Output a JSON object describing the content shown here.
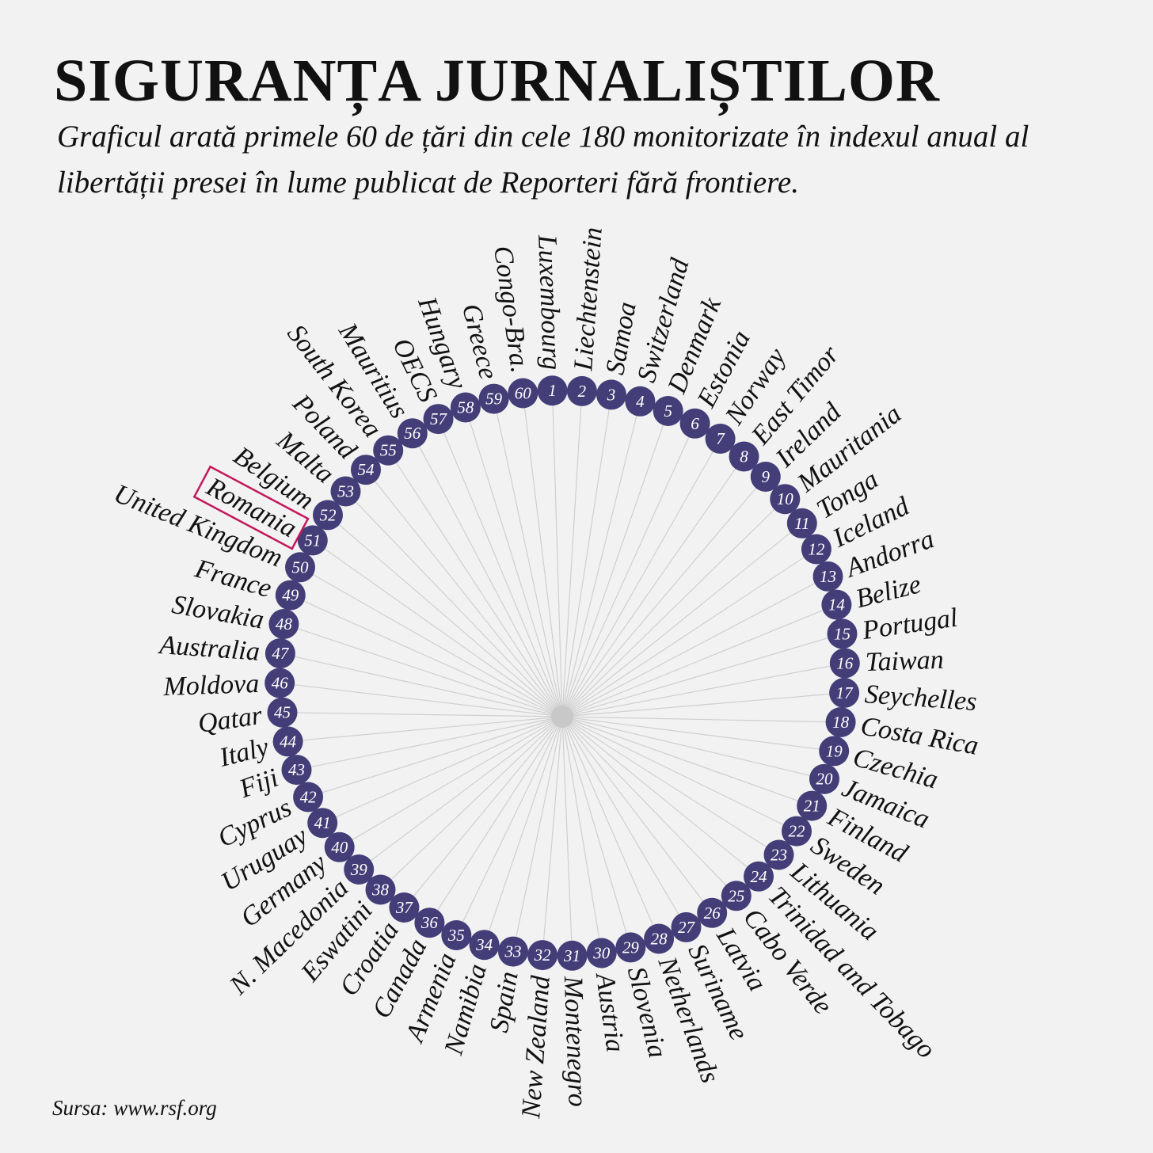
{
  "title": "SIGURANȚA JURNALIȘTILOR",
  "subtitle": "Graficul arată primele 60 de țări din cele 180 monitorizate în indexul anual al libertății presei în lume publicat de Reporteri fără frontiere.",
  "source": "Sursa: www.rsf.org",
  "colors": {
    "background": "#f2f2f2",
    "dot": "#433e78",
    "rank_text": "#ffffff",
    "spoke": "#cfcfcf",
    "highlight": "#c2185b"
  },
  "chart_data": {
    "type": "radial-ranking",
    "highlight": "Romania",
    "entries": [
      {
        "rank": 1,
        "country": "Luxembourg"
      },
      {
        "rank": 2,
        "country": "Liechtenstein"
      },
      {
        "rank": 3,
        "country": "Samoa"
      },
      {
        "rank": 4,
        "country": "Switzerland"
      },
      {
        "rank": 5,
        "country": "Denmark"
      },
      {
        "rank": 6,
        "country": "Estonia"
      },
      {
        "rank": 7,
        "country": "Norway"
      },
      {
        "rank": 8,
        "country": "East Timor"
      },
      {
        "rank": 9,
        "country": "Ireland"
      },
      {
        "rank": 10,
        "country": "Mauritania"
      },
      {
        "rank": 11,
        "country": "Tonga"
      },
      {
        "rank": 12,
        "country": "Iceland"
      },
      {
        "rank": 13,
        "country": "Andorra"
      },
      {
        "rank": 14,
        "country": "Belize"
      },
      {
        "rank": 15,
        "country": "Portugal"
      },
      {
        "rank": 16,
        "country": "Taiwan"
      },
      {
        "rank": 17,
        "country": "Seychelles"
      },
      {
        "rank": 18,
        "country": "Costa Rica"
      },
      {
        "rank": 19,
        "country": "Czechia"
      },
      {
        "rank": 20,
        "country": "Jamaica"
      },
      {
        "rank": 21,
        "country": "Finland"
      },
      {
        "rank": 22,
        "country": "Sweden"
      },
      {
        "rank": 23,
        "country": "Lithuania"
      },
      {
        "rank": 24,
        "country": "Trinidad and Tobago"
      },
      {
        "rank": 25,
        "country": "Cabo Verde"
      },
      {
        "rank": 26,
        "country": "Latvia"
      },
      {
        "rank": 27,
        "country": "Suriname"
      },
      {
        "rank": 28,
        "country": "Netherlands"
      },
      {
        "rank": 29,
        "country": "Slovenia"
      },
      {
        "rank": 30,
        "country": "Austria"
      },
      {
        "rank": 31,
        "country": "Montenegro"
      },
      {
        "rank": 32,
        "country": "New Zealand"
      },
      {
        "rank": 33,
        "country": "Spain"
      },
      {
        "rank": 34,
        "country": "Namibia"
      },
      {
        "rank": 35,
        "country": "Armenia"
      },
      {
        "rank": 36,
        "country": "Canada"
      },
      {
        "rank": 37,
        "country": "Croatia"
      },
      {
        "rank": 38,
        "country": "Eswatini"
      },
      {
        "rank": 39,
        "country": "N. Macedonia"
      },
      {
        "rank": 40,
        "country": "Germany"
      },
      {
        "rank": 41,
        "country": "Uruguay"
      },
      {
        "rank": 42,
        "country": "Cyprus"
      },
      {
        "rank": 43,
        "country": "Fiji"
      },
      {
        "rank": 44,
        "country": "Italy"
      },
      {
        "rank": 45,
        "country": "Qatar"
      },
      {
        "rank": 46,
        "country": "Moldova"
      },
      {
        "rank": 47,
        "country": "Australia"
      },
      {
        "rank": 48,
        "country": "Slovakia"
      },
      {
        "rank": 49,
        "country": "France"
      },
      {
        "rank": 50,
        "country": "United Kingdom"
      },
      {
        "rank": 51,
        "country": "Romania"
      },
      {
        "rank": 52,
        "country": "Belgium"
      },
      {
        "rank": 53,
        "country": "Malta"
      },
      {
        "rank": 54,
        "country": "Poland"
      },
      {
        "rank": 55,
        "country": "South Korea"
      },
      {
        "rank": 56,
        "country": "Mauritius"
      },
      {
        "rank": 57,
        "country": "OECS"
      },
      {
        "rank": 58,
        "country": "Hungary"
      },
      {
        "rank": 59,
        "country": "Greece"
      },
      {
        "rank": 60,
        "country": "Congo-Bra."
      }
    ]
  }
}
